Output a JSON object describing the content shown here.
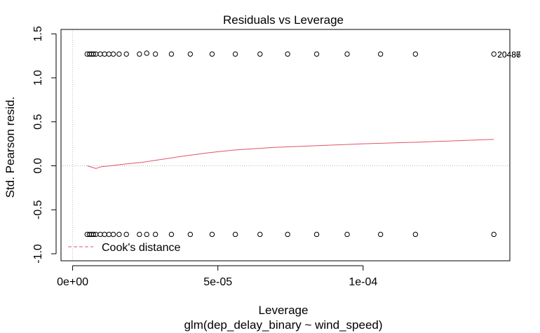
{
  "chart_data": {
    "type": "scatter",
    "title": "Residuals vs Leverage",
    "xlabel": "Leverage",
    "ylabel": "Std. Pearson resid.",
    "subtitle": "glm(dep_delay_binary ~ wind_speed)",
    "xlim": [
      -4e-06,
      0.0001505
    ],
    "ylim": [
      -1.08,
      1.55
    ],
    "x_ticks": [
      {
        "value": 0,
        "label": "0e+00"
      },
      {
        "value": 5e-05,
        "label": "5e-05"
      },
      {
        "value": 0.0001,
        "label": "1e-04"
      }
    ],
    "y_ticks": [
      {
        "value": -1.0,
        "label": "-1.0"
      },
      {
        "value": -0.5,
        "label": "-0.5"
      },
      {
        "value": 0.0,
        "label": "0.0"
      },
      {
        "value": 0.5,
        "label": "0.5"
      },
      {
        "value": 1.0,
        "label": "1.0"
      },
      {
        "value": 1.5,
        "label": "1.5"
      }
    ],
    "reference_lines": {
      "x": 0,
      "y": 0,
      "style": "dotted",
      "color": "#bbbbbb"
    },
    "series": [
      {
        "marker": "open-circle",
        "color": "#000000",
        "x": [
          5e-06,
          5.8e-06,
          6.5e-06,
          7.2e-06,
          8e-06,
          9.5e-06,
          1.1e-05,
          1.25e-05,
          1.4e-05,
          1.6e-05,
          1.85e-05,
          2.3e-05,
          2.55e-05,
          2.85e-05,
          3.4e-05,
          4.05e-05,
          4.8e-05,
          5.6e-05,
          6.45e-05,
          7.4e-05,
          8.4e-05,
          9.45e-05,
          0.000106,
          0.000118,
          0.000145
        ],
        "y": [
          1.27,
          1.27,
          1.27,
          1.27,
          1.27,
          1.27,
          1.27,
          1.27,
          1.27,
          1.27,
          1.27,
          1.27,
          1.28,
          1.27,
          1.27,
          1.27,
          1.27,
          1.27,
          1.27,
          1.27,
          1.27,
          1.27,
          1.27,
          1.27,
          1.27
        ]
      },
      {
        "marker": "open-circle",
        "color": "#000000",
        "x": [
          5e-06,
          5.8e-06,
          6.5e-06,
          7.2e-06,
          8e-06,
          9.5e-06,
          1.1e-05,
          1.25e-05,
          1.4e-05,
          1.6e-05,
          1.85e-05,
          2.3e-05,
          2.55e-05,
          2.85e-05,
          3.4e-05,
          4.05e-05,
          4.8e-05,
          5.6e-05,
          6.45e-05,
          7.4e-05,
          8.4e-05,
          9.45e-05,
          0.000106,
          0.000118,
          0.000145
        ],
        "y": [
          -0.78,
          -0.78,
          -0.78,
          -0.78,
          -0.78,
          -0.78,
          -0.78,
          -0.78,
          -0.78,
          -0.78,
          -0.78,
          -0.78,
          -0.78,
          -0.78,
          -0.78,
          -0.78,
          -0.78,
          -0.78,
          -0.78,
          -0.78,
          -0.78,
          -0.78,
          -0.78,
          -0.78,
          -0.78
        ]
      },
      {
        "name": "Cook's distance",
        "type": "line",
        "color": "#DF536B",
        "x": [
          5e-06,
          7e-06,
          8e-06,
          1e-05,
          1.3e-05,
          1.8e-05,
          2.4e-05,
          3e-05,
          3.8e-05,
          4.7e-05,
          5.6e-05,
          7e-05,
          8.5e-05,
          0.0001,
          0.00012,
          0.000145
        ],
        "y": [
          0.0,
          -0.02,
          -0.03,
          -0.01,
          0.0,
          0.02,
          0.04,
          0.07,
          0.11,
          0.15,
          0.18,
          0.21,
          0.23,
          0.25,
          0.27,
          0.3
        ]
      }
    ],
    "point_labels": [
      {
        "text": "20487",
        "x": 0.000145,
        "y": 1.27
      },
      {
        "text": "20486",
        "x": 0.000145,
        "y": 1.27
      }
    ],
    "legend": {
      "position": "bottom-left",
      "entries": [
        "Cook's distance"
      ]
    }
  }
}
